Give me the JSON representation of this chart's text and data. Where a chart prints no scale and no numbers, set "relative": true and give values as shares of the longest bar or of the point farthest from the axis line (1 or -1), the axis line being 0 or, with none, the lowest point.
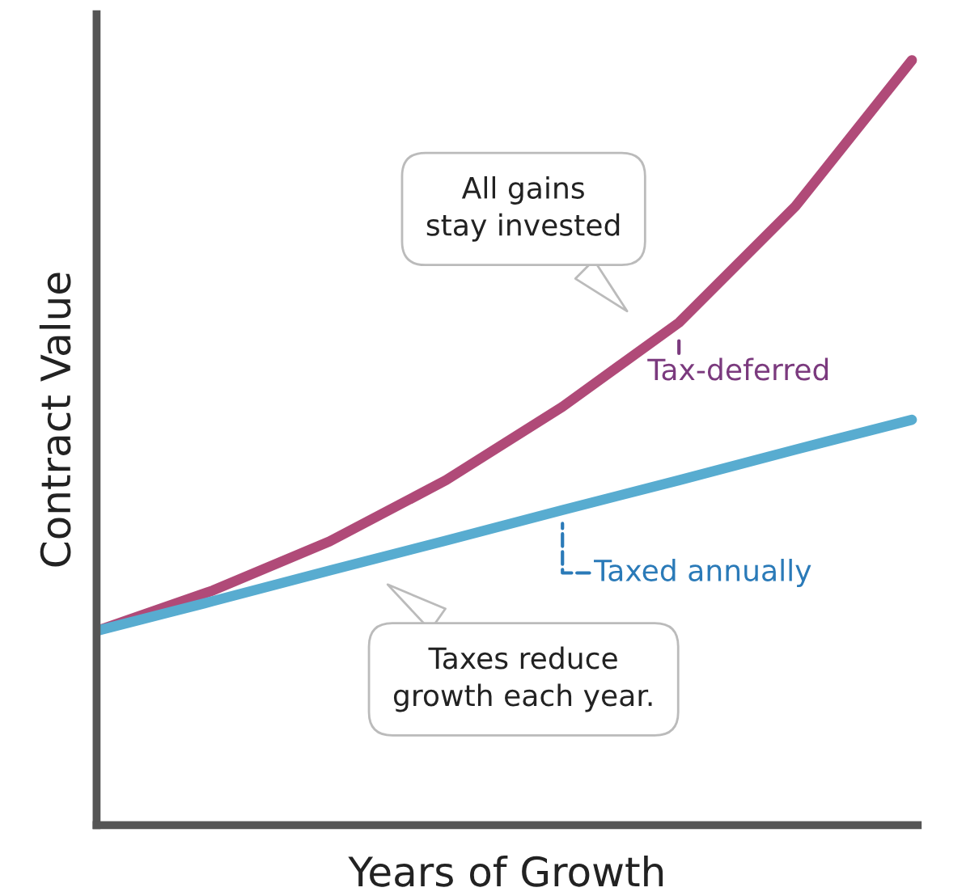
{
  "chart_data": {
    "type": "line",
    "relative": true,
    "xlabel": "Years of Growth",
    "ylabel": "Contract Value",
    "categories": [
      null,
      null,
      null,
      null,
      null,
      null,
      null,
      null
    ],
    "series": [
      {
        "name": "Tax-deferred",
        "color": "#b04a78",
        "values": [
          0.254,
          0.307,
          0.371,
          0.451,
          0.547,
          0.657,
          0.809,
          1.0
        ]
      },
      {
        "name": "Taxed annually",
        "color": "#58acd0",
        "values": [
          0.254,
          0.293,
          0.333,
          0.372,
          0.412,
          0.451,
          0.491,
          0.53
        ]
      }
    ],
    "annotations": [
      "All gains\nstay invested",
      "Taxes reduce\ngrowth each year."
    ],
    "legend": false,
    "grid": false
  }
}
